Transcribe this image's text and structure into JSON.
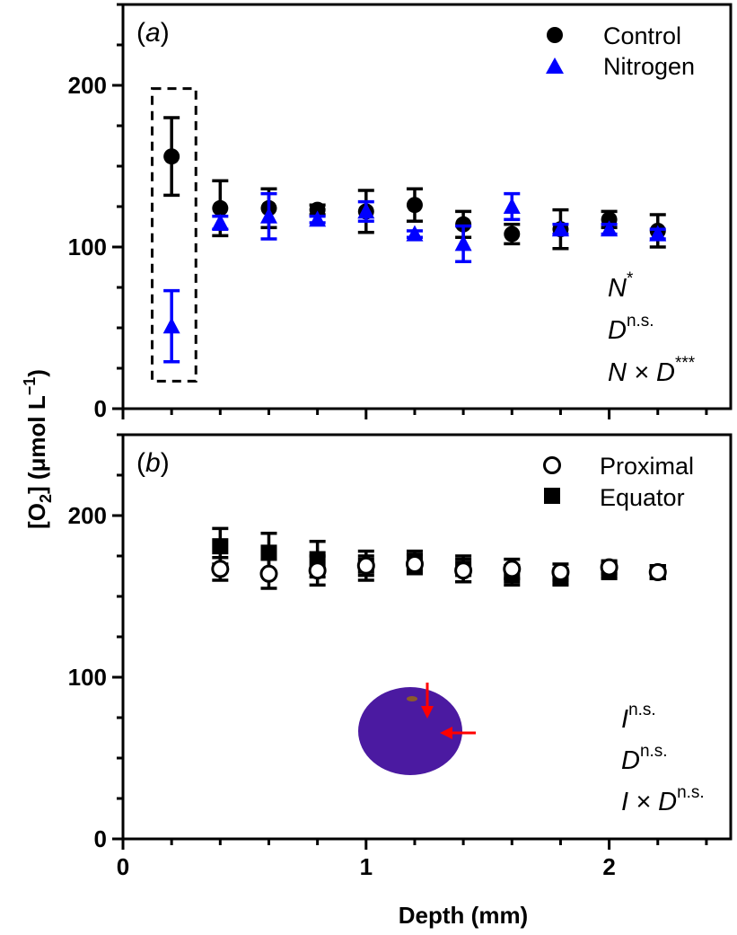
{
  "chart_data": [
    {
      "type": "scatter",
      "panel_label": "a",
      "ylabel": "[O2] (μmol L−1)",
      "ylabel_parts": [
        "[O",
        "2",
        "] (μmol L",
        "−1",
        ")"
      ],
      "xlabel": "",
      "xlim": [
        0,
        2.5
      ],
      "ylim": [
        0,
        250
      ],
      "yticks": [
        0,
        100,
        200
      ],
      "legend_position": "top-right",
      "series": [
        {
          "name": "Control",
          "marker": "filled-circle",
          "color": "#000000",
          "points": [
            {
              "x": 0.2,
              "y": 156,
              "err": 24
            },
            {
              "x": 0.4,
              "y": 124,
              "err": 17
            },
            {
              "x": 0.6,
              "y": 124,
              "err": 12
            },
            {
              "x": 0.8,
              "y": 123,
              "err": 3
            },
            {
              "x": 1.0,
              "y": 122,
              "err": 13
            },
            {
              "x": 1.2,
              "y": 126,
              "err": 10
            },
            {
              "x": 1.4,
              "y": 114,
              "err": 8
            },
            {
              "x": 1.6,
              "y": 108,
              "err": 6
            },
            {
              "x": 1.8,
              "y": 111,
              "err": 12
            },
            {
              "x": 2.0,
              "y": 117,
              "err": 5
            },
            {
              "x": 2.2,
              "y": 110,
              "err": 10
            }
          ]
        },
        {
          "name": "Nitrogen",
          "marker": "filled-triangle",
          "color": "#0000ff",
          "points": [
            {
              "x": 0.2,
              "y": 51,
              "err": 22
            },
            {
              "x": 0.4,
              "y": 115,
              "err": 4
            },
            {
              "x": 0.6,
              "y": 119,
              "err": 14
            },
            {
              "x": 0.8,
              "y": 117,
              "err": 2
            },
            {
              "x": 1.0,
              "y": 122,
              "err": 6
            },
            {
              "x": 1.2,
              "y": 108,
              "err": 2
            },
            {
              "x": 1.4,
              "y": 102,
              "err": 11
            },
            {
              "x": 1.6,
              "y": 125,
              "err": 8
            },
            {
              "x": 1.8,
              "y": 111,
              "err": 3
            },
            {
              "x": 2.0,
              "y": 111,
              "err": 3
            },
            {
              "x": 2.2,
              "y": 108,
              "err": 3
            }
          ]
        }
      ],
      "highlight_box": {
        "x": [
          0.12,
          0.3
        ],
        "y": [
          17,
          198
        ]
      },
      "stats": [
        {
          "base": "N",
          "sup": "*"
        },
        {
          "base": "D",
          "sup": "n.s."
        },
        {
          "base": "N × D",
          "sup": "***"
        }
      ]
    },
    {
      "type": "scatter",
      "panel_label": "b",
      "xlabel": "Depth (mm)",
      "ylabel": "",
      "xlim": [
        0,
        2.5
      ],
      "ylim": [
        0,
        250
      ],
      "xticks": [
        0,
        1,
        2
      ],
      "yticks": [
        0,
        100,
        200
      ],
      "legend_position": "top-right",
      "series": [
        {
          "name": "Proximal",
          "marker": "open-circle",
          "color": "#000000",
          "points": [
            {
              "x": 0.4,
              "y": 167,
              "err": 7
            },
            {
              "x": 0.6,
              "y": 164,
              "err": 9
            },
            {
              "x": 0.8,
              "y": 166,
              "err": 9
            },
            {
              "x": 1.0,
              "y": 169,
              "err": 6
            },
            {
              "x": 1.2,
              "y": 170,
              "err": 6
            },
            {
              "x": 1.4,
              "y": 166,
              "err": 7
            },
            {
              "x": 1.6,
              "y": 167,
              "err": 6
            },
            {
              "x": 1.8,
              "y": 165,
              "err": 5
            },
            {
              "x": 2.0,
              "y": 168,
              "err": 4
            },
            {
              "x": 2.2,
              "y": 165,
              "err": 4
            }
          ]
        },
        {
          "name": "Equator",
          "marker": "filled-square",
          "color": "#000000",
          "points": [
            {
              "x": 0.4,
              "y": 181,
              "err": 11
            },
            {
              "x": 0.6,
              "y": 177,
              "err": 12
            },
            {
              "x": 0.8,
              "y": 173,
              "err": 11
            },
            {
              "x": 1.0,
              "y": 169,
              "err": 9
            },
            {
              "x": 1.2,
              "y": 172,
              "err": 6
            },
            {
              "x": 1.4,
              "y": 167,
              "err": 8
            },
            {
              "x": 1.6,
              "y": 163,
              "err": 6
            },
            {
              "x": 1.8,
              "y": 162,
              "err": 5
            },
            {
              "x": 2.0,
              "y": 166,
              "err": 5
            },
            {
              "x": 2.2,
              "y": 165,
              "err": 4
            }
          ]
        }
      ],
      "inset": {
        "fruit_color": "#4b1aa1",
        "spot_color": "#8b5a2b",
        "arrow_color": "#ff0000"
      },
      "stats": [
        {
          "base": "I",
          "sup": "n.s."
        },
        {
          "base": "D",
          "sup": "n.s."
        },
        {
          "base": "I × D",
          "sup": "n.s."
        }
      ]
    }
  ]
}
